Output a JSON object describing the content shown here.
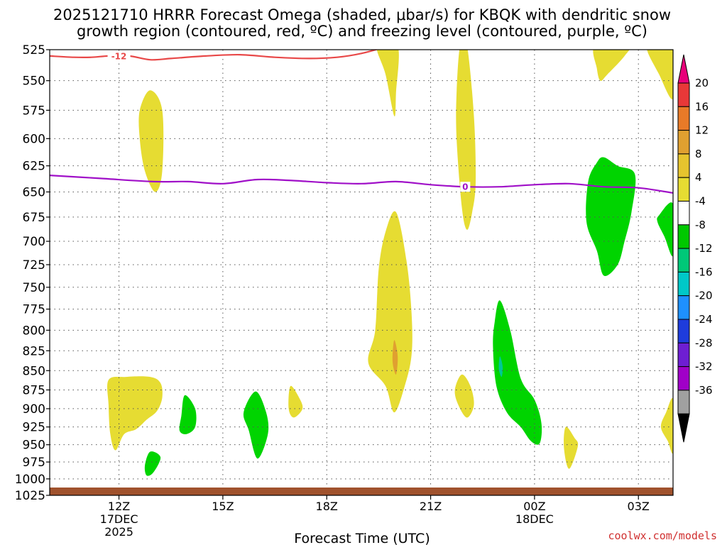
{
  "chart_data": {
    "type": "heatmap",
    "title_line1": "2025121710 HRRR Forecast Omega (shaded, μbar/s) for KBQK with dendritic snow",
    "title_line2": "growth region (contoured, red, ºC) and freezing level (contoured, purple, ºC)",
    "xlabel": "Forecast Time (UTC)",
    "credit": "coolwx.com/models",
    "x_range_hours": [
      10.0,
      28.0
    ],
    "y_levels": [
      "525",
      "550",
      "575",
      "600",
      "625",
      "650",
      "675",
      "700",
      "725",
      "750",
      "775",
      "800",
      "825",
      "850",
      "875",
      "900",
      "925",
      "950",
      "975",
      "1000",
      "1025"
    ],
    "x_ticks": [
      {
        "hour": 12,
        "label": "12Z",
        "sub1": "17DEC",
        "sub2": "2025"
      },
      {
        "hour": 15,
        "label": "15Z",
        "sub1": "",
        "sub2": ""
      },
      {
        "hour": 18,
        "label": "18Z",
        "sub1": "",
        "sub2": ""
      },
      {
        "hour": 21,
        "label": "21Z",
        "sub1": "",
        "sub2": ""
      },
      {
        "hour": 24,
        "label": "00Z",
        "sub1": "18DEC",
        "sub2": ""
      },
      {
        "hour": 27,
        "label": "03Z",
        "sub1": "",
        "sub2": ""
      }
    ],
    "colorbar": {
      "labels": [
        "20",
        "16",
        "12",
        "8",
        "4",
        "-4",
        "-8",
        "-12",
        "-16",
        "-20",
        "-24",
        "-28",
        "-32",
        "-36"
      ],
      "top_color": "#e8007a",
      "bottom_color": "#000000",
      "colors": [
        "#e83838",
        "#e87a28",
        "#e0a030",
        "#e6c42e",
        "#e6dc32",
        "#ffffff",
        "#00c800",
        "#00c878",
        "#00c8c8",
        "#1e90ff",
        "#1e3cdc",
        "#6e1ed2",
        "#a000c8",
        "#a0a0a0"
      ]
    },
    "colors": {
      "yellow": "#e6dc32",
      "orange": "#e0a030",
      "green": "#00d400",
      "teal": "#00c896",
      "red_contour": "#e84848",
      "purple_contour": "#a010c8",
      "ground": "#a0522d"
    },
    "contours": [
      {
        "name": "dendritic-red",
        "label": "-12",
        "color": "#e84848",
        "points": [
          [
            10.0,
            530
          ],
          [
            10.7,
            531
          ],
          [
            11.2,
            531
          ],
          [
            11.7,
            530
          ],
          [
            12.3,
            530
          ],
          [
            12.9,
            533
          ],
          [
            13.5,
            532
          ],
          [
            14.5,
            530
          ],
          [
            15.5,
            529
          ],
          [
            16.5,
            531
          ],
          [
            17.5,
            532
          ],
          [
            18.3,
            531
          ],
          [
            19.0,
            528
          ],
          [
            19.8,
            522
          ]
        ]
      },
      {
        "name": "freezing-purple",
        "label": "0",
        "color": "#a010c8",
        "points": [
          [
            10.0,
            634
          ],
          [
            11.5,
            637
          ],
          [
            13.0,
            640
          ],
          [
            14.0,
            640
          ],
          [
            15.0,
            642
          ],
          [
            16.0,
            638
          ],
          [
            17.0,
            639
          ],
          [
            18.0,
            641
          ],
          [
            19.0,
            642
          ],
          [
            20.0,
            640
          ],
          [
            21.0,
            643
          ],
          [
            22.0,
            645
          ],
          [
            23.0,
            645
          ],
          [
            24.0,
            643
          ],
          [
            25.0,
            642
          ],
          [
            26.0,
            645
          ],
          [
            27.0,
            646
          ],
          [
            28.0,
            651
          ]
        ]
      }
    ],
    "regions": [
      {
        "name": "omega-yellow-top-1",
        "fill": "yellow",
        "points": [
          [
            19.45,
            522
          ],
          [
            20.05,
            522
          ],
          [
            20.0,
            560
          ],
          [
            19.95,
            580
          ],
          [
            19.7,
            545
          ]
        ]
      },
      {
        "name": "omega-yellow-top-2",
        "fill": "yellow",
        "points": [
          [
            21.85,
            522
          ],
          [
            22.05,
            522
          ],
          [
            22.25,
            580
          ],
          [
            22.3,
            640
          ],
          [
            22.2,
            670
          ],
          [
            22.05,
            688
          ],
          [
            21.9,
            665
          ],
          [
            21.75,
            600
          ],
          [
            21.75,
            560
          ]
        ]
      },
      {
        "name": "omega-yellow-top-3",
        "fill": "yellow",
        "points": [
          [
            25.75,
            522
          ],
          [
            26.7,
            522
          ],
          [
            26.6,
            530
          ],
          [
            26.1,
            545
          ],
          [
            25.9,
            550
          ],
          [
            25.8,
            540
          ]
        ]
      },
      {
        "name": "omega-yellow-top-4",
        "fill": "yellow",
        "points": [
          [
            27.25,
            522
          ],
          [
            28.0,
            522
          ],
          [
            28.0,
            565
          ],
          [
            27.6,
            545
          ]
        ]
      },
      {
        "name": "omega-yellow-mid-left",
        "fill": "yellow",
        "points": [
          [
            12.6,
            575
          ],
          [
            12.9,
            558
          ],
          [
            13.25,
            575
          ],
          [
            13.25,
            630
          ],
          [
            13.05,
            650
          ],
          [
            12.75,
            630
          ],
          [
            12.6,
            600
          ]
        ]
      },
      {
        "name": "omega-yellow-big",
        "fill": "yellow",
        "points": [
          [
            20.0,
            670
          ],
          [
            20.3,
            720
          ],
          [
            20.45,
            780
          ],
          [
            20.45,
            830
          ],
          [
            20.25,
            870
          ],
          [
            19.95,
            905
          ],
          [
            19.7,
            870
          ],
          [
            19.2,
            840
          ],
          [
            19.4,
            800
          ],
          [
            19.5,
            730
          ],
          [
            19.7,
            690
          ]
        ]
      },
      {
        "name": "omega-orange-core",
        "fill": "orange",
        "points": [
          [
            19.95,
            812
          ],
          [
            20.05,
            832
          ],
          [
            20.0,
            855
          ],
          [
            19.9,
            838
          ]
        ]
      },
      {
        "name": "omega-yellow-lower-left",
        "fill": "yellow",
        "points": [
          [
            11.7,
            862
          ],
          [
            12.2,
            858
          ],
          [
            12.9,
            858
          ],
          [
            13.2,
            866
          ],
          [
            13.25,
            885
          ],
          [
            13.1,
            903
          ],
          [
            12.8,
            915
          ],
          [
            12.5,
            928
          ],
          [
            12.15,
            935
          ],
          [
            11.9,
            958
          ],
          [
            11.75,
            935
          ],
          [
            11.7,
            895
          ]
        ]
      },
      {
        "name": "omega-yellow-small-17z",
        "fill": "yellow",
        "points": [
          [
            16.95,
            870
          ],
          [
            17.2,
            885
          ],
          [
            17.3,
            900
          ],
          [
            17.05,
            912
          ],
          [
            16.9,
            900
          ]
        ]
      },
      {
        "name": "omega-yellow-small-22z",
        "fill": "yellow",
        "points": [
          [
            21.9,
            855
          ],
          [
            22.15,
            870
          ],
          [
            22.25,
            895
          ],
          [
            22.05,
            912
          ],
          [
            21.8,
            895
          ],
          [
            21.7,
            875
          ]
        ]
      },
      {
        "name": "omega-yellow-small-01z",
        "fill": "yellow",
        "points": [
          [
            24.9,
            925
          ],
          [
            25.15,
            940
          ],
          [
            25.25,
            952
          ],
          [
            25.0,
            985
          ],
          [
            24.85,
            955
          ]
        ]
      },
      {
        "name": "omega-yellow-right-edge",
        "fill": "yellow",
        "points": [
          [
            28.0,
            888
          ],
          [
            27.8,
            905
          ],
          [
            27.65,
            925
          ],
          [
            27.85,
            945
          ],
          [
            28.0,
            960
          ]
        ]
      },
      {
        "name": "omega-green-14z",
        "fill": "green",
        "points": [
          [
            13.9,
            882
          ],
          [
            14.2,
            900
          ],
          [
            14.2,
            925
          ],
          [
            13.95,
            935
          ],
          [
            13.75,
            930
          ],
          [
            13.8,
            910
          ]
        ]
      },
      {
        "name": "omega-green-16z",
        "fill": "green",
        "points": [
          [
            15.95,
            877
          ],
          [
            16.25,
            905
          ],
          [
            16.3,
            935
          ],
          [
            16.0,
            970
          ],
          [
            15.75,
            930
          ],
          [
            15.6,
            905
          ]
        ]
      },
      {
        "name": "omega-green-13z",
        "fill": "green",
        "points": [
          [
            12.9,
            960
          ],
          [
            13.2,
            968
          ],
          [
            13.0,
            990
          ],
          [
            12.8,
            995
          ],
          [
            12.75,
            980
          ]
        ]
      },
      {
        "name": "omega-green-23z",
        "fill": "green",
        "points": [
          [
            23.0,
            765
          ],
          [
            23.3,
            800
          ],
          [
            23.6,
            860
          ],
          [
            24.0,
            888
          ],
          [
            24.2,
            920
          ],
          [
            24.15,
            948
          ],
          [
            23.9,
            945
          ],
          [
            23.6,
            925
          ],
          [
            23.2,
            905
          ],
          [
            22.9,
            870
          ],
          [
            22.8,
            820
          ],
          [
            22.85,
            790
          ]
        ]
      },
      {
        "name": "omega-teal-core",
        "fill": "teal",
        "points": [
          [
            23.0,
            832
          ],
          [
            23.08,
            845
          ],
          [
            23.05,
            858
          ],
          [
            22.97,
            848
          ]
        ]
      },
      {
        "name": "omega-green-02z",
        "fill": "green",
        "points": [
          [
            26.0,
            617
          ],
          [
            26.4,
            625
          ],
          [
            26.9,
            633
          ],
          [
            26.8,
            670
          ],
          [
            26.6,
            700
          ],
          [
            26.4,
            725
          ],
          [
            26.0,
            737
          ],
          [
            25.8,
            710
          ],
          [
            25.5,
            680
          ],
          [
            25.55,
            640
          ],
          [
            25.8,
            622
          ]
        ]
      },
      {
        "name": "omega-green-03z",
        "fill": "green",
        "points": [
          [
            27.6,
            673
          ],
          [
            28.0,
            662
          ],
          [
            28.0,
            715
          ],
          [
            27.75,
            695
          ],
          [
            27.55,
            680
          ]
        ]
      }
    ]
  }
}
